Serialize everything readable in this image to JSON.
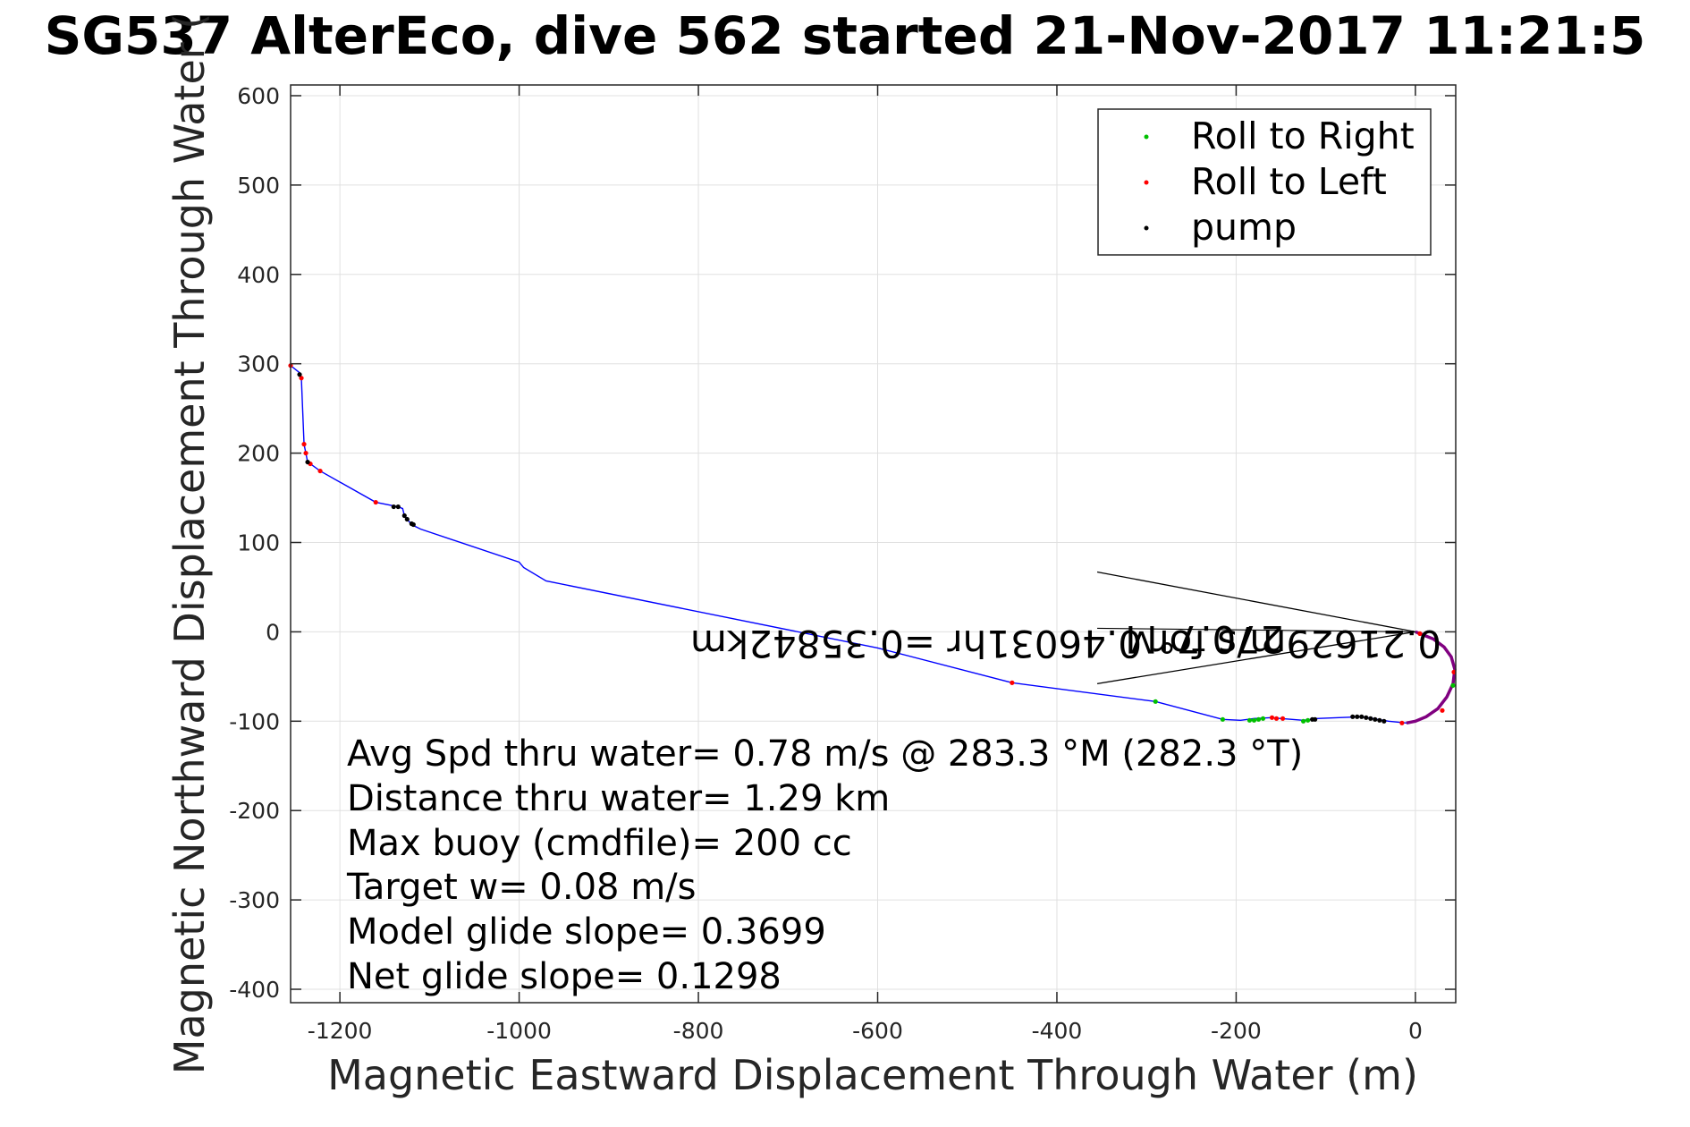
{
  "chart_data": {
    "type": "scatter",
    "title": "SG537 AlterEco, dive 562 started 21-Nov-2017 11:21:5",
    "xlabel": "Magnetic Eastward Displacement Through Water (m)",
    "ylabel": "Magnetic Northward Displacement Through Water (",
    "xlim": [
      -1255,
      45
    ],
    "ylim": [
      -415,
      612
    ],
    "xticks": [
      -1200,
      -1000,
      -800,
      -600,
      -400,
      -200,
      0
    ],
    "yticks": [
      600,
      500,
      400,
      300,
      200,
      100,
      0,
      -100,
      -200,
      -300,
      -400
    ],
    "grid": true,
    "legend_position": "top-right",
    "colors": {
      "track": "#0000ff",
      "roll_right": "#00c000",
      "roll_left": "#ff0000",
      "pump": "#000000",
      "heading_arc": "#800080"
    },
    "legend": [
      "Roll to Right",
      "Roll to Left",
      "pump"
    ],
    "track": [
      [
        -1255,
        298
      ],
      [
        -1245,
        290
      ],
      [
        -1243,
        284
      ],
      [
        -1240,
        210
      ],
      [
        -1238,
        200
      ],
      [
        -1236,
        190
      ],
      [
        -1233,
        188
      ],
      [
        -1222,
        180
      ],
      [
        -1160,
        145
      ],
      [
        -1135,
        140
      ],
      [
        -1130,
        138
      ],
      [
        -1128,
        130
      ],
      [
        -1120,
        120
      ],
      [
        -1110,
        115
      ],
      [
        -1000,
        78
      ],
      [
        -995,
        72
      ],
      [
        -970,
        57
      ],
      [
        -600,
        -18
      ],
      [
        -450,
        -57
      ],
      [
        -290,
        -78
      ],
      [
        -215,
        -98
      ],
      [
        -195,
        -99
      ],
      [
        -180,
        -97
      ],
      [
        -160,
        -96
      ],
      [
        -150,
        -97
      ],
      [
        -125,
        -99
      ],
      [
        -110,
        -97
      ],
      [
        -60,
        -95
      ],
      [
        -30,
        -100
      ],
      [
        -20,
        -101
      ],
      [
        -10,
        -102
      ],
      [
        0,
        -100
      ],
      [
        12,
        -95
      ],
      [
        25,
        -86
      ],
      [
        35,
        -73
      ],
      [
        42,
        -58
      ],
      [
        44,
        -42
      ],
      [
        40,
        -28
      ],
      [
        32,
        -17
      ],
      [
        20,
        -8
      ],
      [
        8,
        -2
      ],
      [
        0,
        0
      ]
    ],
    "arc": [
      [
        0,
        0
      ],
      [
        20,
        -8
      ],
      [
        32,
        -17
      ],
      [
        40,
        -28
      ],
      [
        44,
        -42
      ],
      [
        42,
        -58
      ],
      [
        35,
        -73
      ],
      [
        25,
        -86
      ],
      [
        12,
        -95
      ],
      [
        0,
        -100
      ],
      [
        -10,
        -102
      ]
    ],
    "roll_right_points": [
      [
        -290,
        -78
      ],
      [
        -215,
        -98
      ],
      [
        -185,
        -99
      ],
      [
        -180,
        -99
      ],
      [
        -175,
        -98
      ],
      [
        -170,
        -97
      ],
      [
        -125,
        -100
      ],
      [
        -120,
        -99
      ],
      [
        42,
        -60
      ]
    ],
    "roll_left_points": [
      [
        -1255,
        298
      ],
      [
        -1243,
        284
      ],
      [
        -1240,
        210
      ],
      [
        -1238,
        200
      ],
      [
        -1233,
        188
      ],
      [
        -1222,
        180
      ],
      [
        -1160,
        145
      ],
      [
        -450,
        -57
      ],
      [
        -160,
        -96
      ],
      [
        -155,
        -97
      ],
      [
        -148,
        -97
      ],
      [
        -15,
        -102
      ],
      [
        5,
        -2
      ],
      [
        30,
        -88
      ],
      [
        43,
        -45
      ]
    ],
    "pump_points": [
      [
        -1245,
        288
      ],
      [
        -1236,
        190
      ],
      [
        -1140,
        140
      ],
      [
        -1135,
        140
      ],
      [
        -1128,
        130
      ],
      [
        -1125,
        126
      ],
      [
        -1120,
        121
      ],
      [
        -1118,
        120
      ],
      [
        -115,
        -98
      ],
      [
        -112,
        -98
      ],
      [
        -70,
        -95
      ],
      [
        -65,
        -95
      ],
      [
        -60,
        -95
      ],
      [
        -55,
        -96
      ],
      [
        -50,
        -97
      ],
      [
        -45,
        -98
      ],
      [
        -40,
        -99
      ],
      [
        -35,
        -100
      ]
    ],
    "current_arrow": {
      "tip": [
        0,
        0
      ],
      "ends": [
        [
          -355,
          67
        ],
        [
          -355,
          -58
        ]
      ],
      "label": "0.21629m/s for 0.46031hr =0.35842km",
      "label2": "270.7°M"
    },
    "annotations": [
      "Avg Spd thru water=  0.78 m/s @ 283.3 °M (282.3 °T)",
      "Distance thru water=  1.29 km",
      "Max buoy (cmdfile)= 200 cc",
      "Target w= 0.08 m/s",
      "Model glide slope= 0.3699",
      "Net glide slope= 0.1298"
    ]
  }
}
